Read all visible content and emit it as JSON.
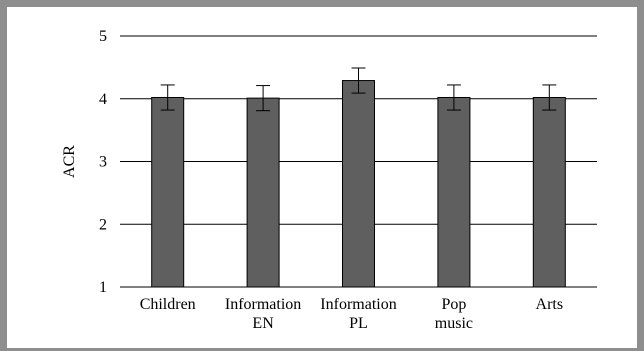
{
  "chart_data": {
    "type": "bar",
    "title": "",
    "xlabel": "",
    "ylabel": "ACR",
    "ylim": [
      1,
      5
    ],
    "yticks": [
      1,
      2,
      3,
      4,
      5
    ],
    "grid": true,
    "categories": [
      [
        "Children"
      ],
      [
        "Information",
        "EN"
      ],
      [
        "Information",
        "PL"
      ],
      [
        "Pop",
        "music"
      ],
      [
        "Arts"
      ]
    ],
    "series": [
      {
        "values": [
          4.02,
          4.01,
          4.29,
          4.02,
          4.02
        ],
        "error": [
          0.2,
          0.2,
          0.2,
          0.2,
          0.2
        ]
      }
    ],
    "colors": {
      "bar_fill": "#5f5f5f",
      "bar_stroke": "#000000",
      "grid": "#000000",
      "frame": "#8e8e8e"
    }
  }
}
